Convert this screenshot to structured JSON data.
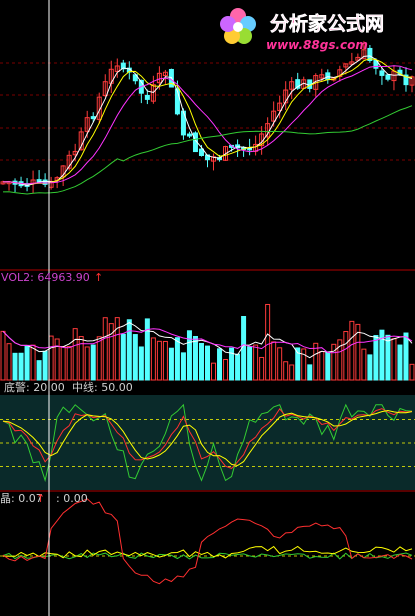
{
  "watermark": {
    "name": "分析家公式网",
    "url": "www.88gs.com"
  },
  "chart_data": [
    {
      "type": "candlestick",
      "panel": "price",
      "ma_series": [
        "white",
        "yellow",
        "magenta",
        "green"
      ],
      "colors": {
        "up": "#ff3b3b",
        "down": "#54ffff",
        "ma1": "#ffffff",
        "ma2": "#ffff00",
        "ma3": "#ff33ff",
        "ma4": "#33cc33"
      }
    },
    {
      "type": "bar",
      "panel": "volume",
      "label": "VOL2: 64963.90",
      "colors": {
        "up": "#ff3b3b",
        "down": "#54ffff",
        "ma1": "#ffffff",
        "ma2": "#ff33ff"
      }
    },
    {
      "type": "line",
      "panel": "kdj",
      "label_a": "底警: 20.00",
      "label_b": "中线: 50.00",
      "levels": [
        20,
        50,
        80
      ],
      "colors": {
        "k": "#ff3030",
        "d": "#ffff00",
        "j": "#33cc33"
      }
    },
    {
      "type": "line",
      "panel": "osc",
      "label_a": "晶: 0.07",
      "label_b": ": 0.00",
      "colors": {
        "a": "#ff3030",
        "b": "#ffff00",
        "c": "#33cc33"
      }
    }
  ]
}
